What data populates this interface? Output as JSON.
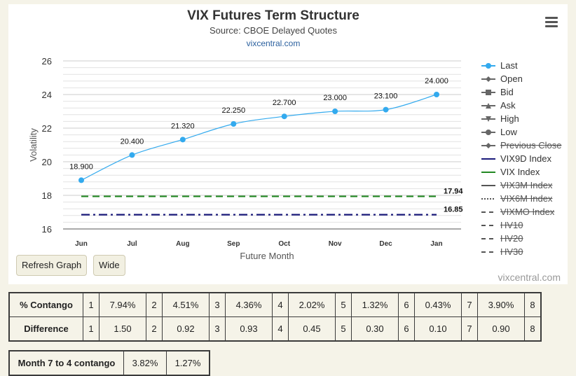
{
  "header": {
    "title": "VIX Futures Term Structure",
    "subtitle": "Source: CBOE Delayed Quotes",
    "link": "vixcentral.com"
  },
  "chart_data": {
    "type": "line",
    "title": "VIX Futures Term Structure",
    "subtitle": "Source: CBOE Delayed Quotes",
    "xlabel": "Future Month",
    "ylabel": "Volatility",
    "categories": [
      "Jun",
      "Jul",
      "Aug",
      "Sep",
      "Oct",
      "Nov",
      "Dec",
      "Jan"
    ],
    "ylim": [
      16,
      26
    ],
    "yticks": [
      16,
      18,
      20,
      22,
      24,
      26
    ],
    "grid": true,
    "legend_position": "right",
    "series": [
      {
        "name": "Last",
        "values": [
          18.9,
          20.4,
          21.32,
          22.25,
          22.7,
          23.0,
          23.1,
          24.0
        ],
        "labels": [
          "18.900",
          "20.400",
          "21.320",
          "22.250",
          "22.700",
          "23.000",
          "23.100",
          "24.000"
        ],
        "color": "#33aaee",
        "visible": true
      },
      {
        "name": "VIX Index",
        "values": [
          17.94,
          17.94,
          17.94,
          17.94,
          17.94,
          17.94,
          17.94,
          17.94
        ],
        "end_label": "17.94",
        "color": "#228822",
        "dash": "dashed",
        "visible": true
      },
      {
        "name": "VIX9D Index",
        "values": [
          16.85,
          16.85,
          16.85,
          16.85,
          16.85,
          16.85,
          16.85,
          16.85
        ],
        "end_label": "16.85",
        "color": "#1a1a7a",
        "dash": "dashdot",
        "visible": true
      }
    ]
  },
  "legend": {
    "items": [
      {
        "label": "Last",
        "symbol": "circle",
        "color": "#33aaee",
        "hidden": false
      },
      {
        "label": "Open",
        "symbol": "diamond",
        "color": "#666666",
        "hidden": false
      },
      {
        "label": "Bid",
        "symbol": "square",
        "color": "#666666",
        "hidden": false
      },
      {
        "label": "Ask",
        "symbol": "triangle-up",
        "color": "#666666",
        "hidden": false
      },
      {
        "label": "High",
        "symbol": "triangle-down",
        "color": "#666666",
        "hidden": false
      },
      {
        "label": "Low",
        "symbol": "circle",
        "color": "#666666",
        "hidden": false
      },
      {
        "label": "Previous Close",
        "symbol": "diamond",
        "color": "#666666",
        "hidden": true
      },
      {
        "label": "VIX9D Index",
        "symbol": "line",
        "color": "#1a1a7a",
        "hidden": false
      },
      {
        "label": "VIX Index",
        "symbol": "line",
        "color": "#228822",
        "hidden": false
      },
      {
        "label": "VIX3M Index",
        "symbol": "line",
        "color": "#555555",
        "hidden": true
      },
      {
        "label": "VIX6M Index",
        "symbol": "dotted",
        "color": "#555555",
        "hidden": true
      },
      {
        "label": "VIXMO Index",
        "symbol": "dashed",
        "color": "#555555",
        "hidden": true
      },
      {
        "label": "HV10",
        "symbol": "dashed",
        "color": "#555555",
        "hidden": true
      },
      {
        "label": "HV20",
        "symbol": "dashed",
        "color": "#555555",
        "hidden": true
      },
      {
        "label": "HV30",
        "symbol": "dashed",
        "color": "#555555",
        "hidden": true
      }
    ]
  },
  "buttons": {
    "refresh": "Refresh Graph",
    "wide": "Wide"
  },
  "credit": "vixcentral.com",
  "stats": {
    "contango": {
      "label": "% Contango",
      "cells": [
        [
          "1",
          "7.94%"
        ],
        [
          "2",
          "4.51%"
        ],
        [
          "3",
          "4.36%"
        ],
        [
          "4",
          "2.02%"
        ],
        [
          "5",
          "1.32%"
        ],
        [
          "6",
          "0.43%"
        ],
        [
          "7",
          "3.90%"
        ],
        [
          "8",
          ""
        ]
      ]
    },
    "difference": {
      "label": "Difference",
      "cells": [
        [
          "1",
          "1.50"
        ],
        [
          "2",
          "0.92"
        ],
        [
          "3",
          "0.93"
        ],
        [
          "4",
          "0.45"
        ],
        [
          "5",
          "0.30"
        ],
        [
          "6",
          "0.10"
        ],
        [
          "7",
          "0.90"
        ],
        [
          "8",
          ""
        ]
      ]
    }
  },
  "month7to4": {
    "label": "Month 7 to 4 contango",
    "values": [
      "3.82%",
      "1.27%"
    ]
  }
}
